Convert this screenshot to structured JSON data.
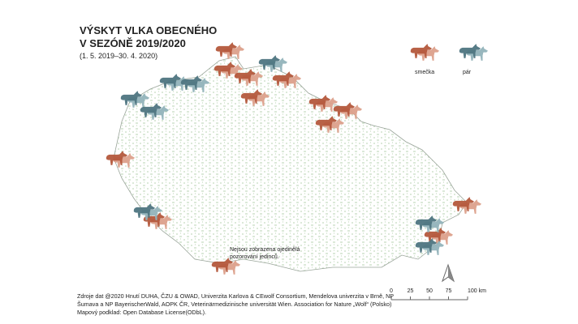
{
  "title": {
    "line1": "VÝSKYT VLKA OBECNÉHO",
    "line2": "V SEZÓNĚ 2019/2020",
    "period": "(1. 5. 2019–30. 4. 2020)"
  },
  "legend": {
    "pack": "smečka",
    "pair": "pár"
  },
  "note": [
    "Nejsou zobrazena ojedinělá",
    "pozorování jedinců."
  ],
  "sources": [
    "Zdroje dat @2020 Hnutí DUHA, ČZU & OWAD, Univerzita Karlova & CEwolf Consortium, Mendelova univerzita v Brně, NP",
    "Šumava a NP BayerischerWald, AOPK ČR, Veterinärmedizinische universität Wien. Association for Nature „Wolf“ (Polsko)",
    "Mapový podklad: Open Database License(ODbL)."
  ],
  "scale_bar": [
    "0",
    "25",
    "50",
    "75",
    "100 km"
  ]
}
